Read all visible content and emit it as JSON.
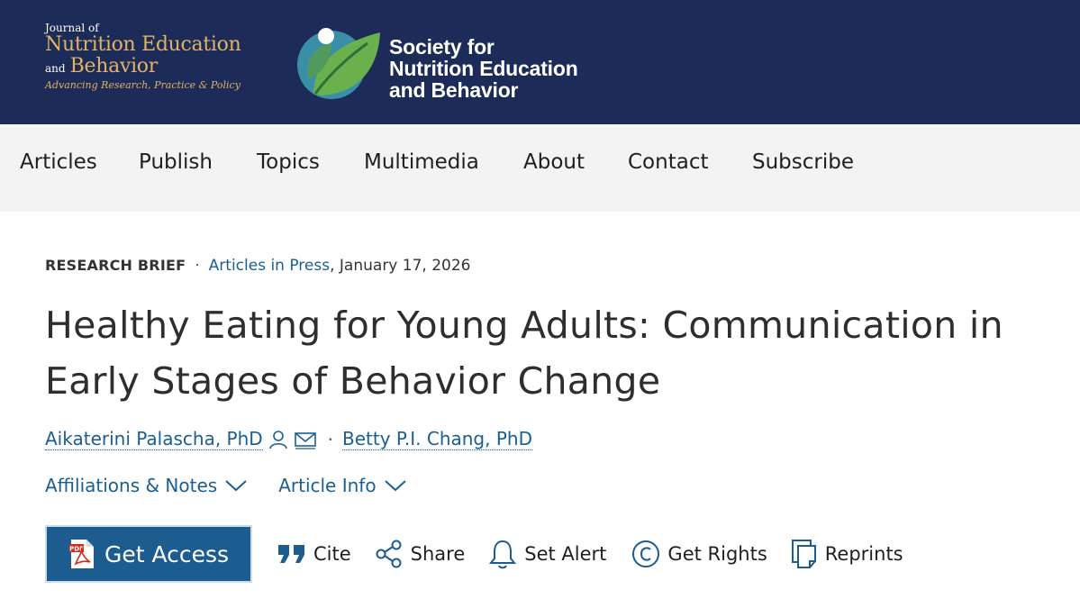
{
  "header": {
    "journal": {
      "journal_of": "Journal of",
      "name_line": "Nutrition Education",
      "and": "and",
      "behavior": "Behavior",
      "tagline": "Advancing Research, Practice & Policy",
      "gold_color": "#e2b267"
    },
    "society": {
      "line1": "Society for",
      "line2": "Nutrition Education",
      "line3": "and Behavior",
      "logo_icon": "leaf-logo-icon"
    },
    "background_color": "#1c2b57"
  },
  "nav": {
    "items": [
      "Articles",
      "Publish",
      "Topics",
      "Multimedia",
      "About",
      "Contact",
      "Subscribe"
    ]
  },
  "article": {
    "type": "RESEARCH BRIEF",
    "separator": "·",
    "in_press": "Articles in Press",
    "date": ", January 17, 2026",
    "title": "Healthy Eating for Young Adults: Communication in Early Stages of Behavior Change",
    "authors": [
      {
        "name": "Aikaterini Palascha, PhD",
        "icons": [
          "person-icon",
          "mail-icon"
        ]
      },
      {
        "name": "Betty P.I. Chang, PhD"
      }
    ],
    "affiliations_label": "Affiliations & Notes",
    "article_info_label": "Article Info",
    "link_color": "#1b5f8f"
  },
  "actions": {
    "get_access": "Get Access",
    "cite": "Cite",
    "share": "Share",
    "set_alert": "Set Alert",
    "get_rights": "Get Rights",
    "reprints": "Reprints",
    "button_color": "#1d5c8f"
  }
}
